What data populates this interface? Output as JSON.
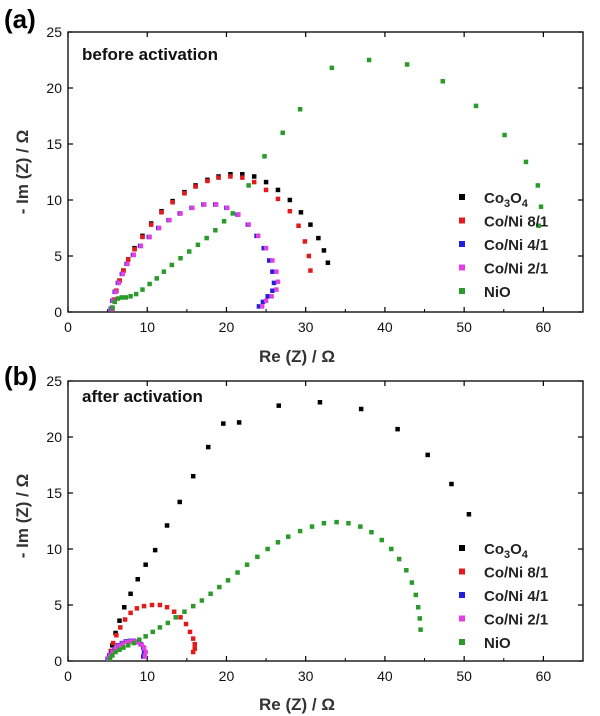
{
  "chart_data": [
    {
      "type": "scatter",
      "panel_label": "(a)",
      "annotation": "before activation",
      "xlabel": "Re (Z) / Ω",
      "ylabel": "- Im (Z) / Ω",
      "xlim": [
        0,
        65
      ],
      "ylim": [
        0,
        25
      ],
      "xticks": [
        0,
        10,
        20,
        30,
        40,
        50,
        60
      ],
      "yticks": [
        0,
        5,
        10,
        15,
        20,
        25
      ],
      "grid": false,
      "legend_position": "right",
      "series": [
        {
          "name": "Co3O4",
          "name_main": "Co",
          "name_sub1": "3",
          "name_mid": "O",
          "name_sub2": "4",
          "color": "#000000",
          "x": [
            5.6,
            5.8,
            6.1,
            6.5,
            7.0,
            7.6,
            8.4,
            9.4,
            10.5,
            11.8,
            13.2,
            14.7,
            16.1,
            17.6,
            19.0,
            20.5,
            22.0,
            23.5,
            25.0,
            26.5,
            28.0,
            29.4,
            30.6,
            31.6,
            32.3,
            32.8
          ],
          "y": [
            0.3,
            1.1,
            1.9,
            2.8,
            3.7,
            4.7,
            5.7,
            6.8,
            7.9,
            9.0,
            9.9,
            10.7,
            11.3,
            11.8,
            12.1,
            12.3,
            12.3,
            12.1,
            11.6,
            10.9,
            10.0,
            8.9,
            7.8,
            6.6,
            5.5,
            4.4
          ]
        },
        {
          "name": "Co/Ni 8/1",
          "color": "#e31a1c",
          "x": [
            5.6,
            5.8,
            6.1,
            6.5,
            7.0,
            7.6,
            8.4,
            9.4,
            10.5,
            11.8,
            13.2,
            14.7,
            16.1,
            17.6,
            19.0,
            20.5,
            22.0,
            23.5,
            25.0,
            26.5,
            28.0,
            29.1,
            29.9,
            30.4,
            30.6
          ],
          "y": [
            0.3,
            1.1,
            1.9,
            2.8,
            3.7,
            4.7,
            5.6,
            6.7,
            7.8,
            8.9,
            9.8,
            10.6,
            11.2,
            11.7,
            12.0,
            12.1,
            12.0,
            11.6,
            10.9,
            10.1,
            9.0,
            7.7,
            6.3,
            5.0,
            3.7
          ]
        },
        {
          "name": "Co/Ni 4/1",
          "color": "#1f1fe0",
          "x": [
            5.4,
            5.6,
            5.9,
            6.3,
            6.8,
            7.4,
            8.2,
            9.1,
            10.2,
            11.4,
            12.7,
            14.1,
            15.6,
            17.1,
            18.6,
            20.0,
            21.4,
            22.7,
            23.8,
            24.7,
            25.4,
            25.8,
            26.0,
            25.8,
            25.2,
            24.6,
            24.1
          ],
          "y": [
            0.3,
            1.0,
            1.8,
            2.6,
            3.4,
            4.3,
            5.1,
            5.9,
            6.7,
            7.5,
            8.2,
            8.8,
            9.3,
            9.6,
            9.6,
            9.3,
            8.7,
            7.8,
            6.8,
            5.7,
            4.6,
            3.6,
            2.6,
            1.9,
            1.4,
            0.9,
            0.5
          ]
        },
        {
          "name": "Co/Ni 2/1",
          "color": "#e040e0",
          "x": [
            5.5,
            5.7,
            6.0,
            6.4,
            6.9,
            7.5,
            8.3,
            9.2,
            10.3,
            11.5,
            12.8,
            14.2,
            15.7,
            17.2,
            18.7,
            20.1,
            21.5,
            22.8,
            24.0,
            25.0,
            25.8,
            26.3,
            26.5,
            26.3,
            25.7,
            25.0,
            24.5
          ],
          "y": [
            0.3,
            1.0,
            1.8,
            2.6,
            3.4,
            4.3,
            5.1,
            5.9,
            6.7,
            7.5,
            8.2,
            8.8,
            9.3,
            9.6,
            9.6,
            9.3,
            8.7,
            7.8,
            6.8,
            5.7,
            4.6,
            3.6,
            2.7,
            2.0,
            1.4,
            1.0,
            0.5
          ]
        },
        {
          "name": "NiO",
          "color": "#2a9a2a",
          "x": [
            5.6,
            5.9,
            6.3,
            6.8,
            7.3,
            7.9,
            8.6,
            9.4,
            10.3,
            11.2,
            12.1,
            13.1,
            14.2,
            15.3,
            16.4,
            17.5,
            18.6,
            19.7,
            20.8,
            22.8,
            24.8,
            27.1,
            29.3,
            33.3,
            38.0,
            42.8,
            47.3,
            51.5,
            55.1,
            57.8,
            59.3,
            59.7,
            59.4
          ],
          "y": [
            0.4,
            0.9,
            1.2,
            1.3,
            1.3,
            1.4,
            1.6,
            2.0,
            2.5,
            3.0,
            3.6,
            4.2,
            4.8,
            5.4,
            6.0,
            6.6,
            7.3,
            8.1,
            8.8,
            11.3,
            13.9,
            16.0,
            18.1,
            21.8,
            22.5,
            22.1,
            20.6,
            18.4,
            15.8,
            13.4,
            11.3,
            9.4,
            7.7
          ]
        }
      ]
    },
    {
      "type": "scatter",
      "panel_label": "(b)",
      "annotation": "after activation",
      "xlabel": "Re (Z) / Ω",
      "ylabel": "- Im (Z) / Ω",
      "xlim": [
        0,
        65
      ],
      "ylim": [
        0,
        25
      ],
      "xticks": [
        0,
        10,
        20,
        30,
        40,
        50,
        60
      ],
      "yticks": [
        0,
        5,
        10,
        15,
        20,
        25
      ],
      "grid": false,
      "legend_position": "right",
      "series": [
        {
          "name": "Co3O4",
          "name_main": "Co",
          "name_sub1": "3",
          "name_mid": "O",
          "name_sub2": "4",
          "color": "#000000",
          "x": [
            5.3,
            5.6,
            6.0,
            6.5,
            7.1,
            7.9,
            8.8,
            9.8,
            11.0,
            12.5,
            14.1,
            15.8,
            17.7,
            19.6,
            21.6,
            26.6,
            31.8,
            37.0,
            41.6,
            45.4,
            48.4,
            50.6
          ],
          "y": [
            0.4,
            1.4,
            2.5,
            3.6,
            4.8,
            6.0,
            7.3,
            8.6,
            9.9,
            12.1,
            14.2,
            16.5,
            19.1,
            21.2,
            21.3,
            22.8,
            23.1,
            22.5,
            20.7,
            18.4,
            15.8,
            13.1
          ]
        },
        {
          "name": "Co/Ni 8/1",
          "color": "#e31a1c",
          "x": [
            5.2,
            5.4,
            5.7,
            6.1,
            6.6,
            7.2,
            7.9,
            8.7,
            9.6,
            10.6,
            11.6,
            12.5,
            13.4,
            14.2,
            14.9,
            15.4,
            15.8,
            16.0,
            16.0,
            15.8
          ],
          "y": [
            0.3,
            0.9,
            1.6,
            2.3,
            3.0,
            3.7,
            4.3,
            4.7,
            4.9,
            5.0,
            5.0,
            4.8,
            4.4,
            3.9,
            3.3,
            2.6,
            2.0,
            1.5,
            1.1,
            0.8
          ]
        },
        {
          "name": "Co/Ni 4/1",
          "color": "#1f1fe0",
          "x": [
            5.0,
            5.2,
            5.5,
            5.9,
            6.3,
            6.8,
            7.3,
            7.8,
            8.3,
            8.8,
            9.2,
            9.5,
            9.6,
            9.5
          ],
          "y": [
            0.2,
            0.5,
            0.8,
            1.1,
            1.4,
            1.6,
            1.75,
            1.8,
            1.8,
            1.7,
            1.5,
            1.2,
            0.8,
            0.4
          ]
        },
        {
          "name": "Co/Ni 2/1",
          "color": "#e040e0",
          "x": [
            5.1,
            5.3,
            5.6,
            6.0,
            6.4,
            6.9,
            7.4,
            7.9,
            8.4,
            8.9,
            9.3,
            9.6,
            9.8,
            9.7
          ],
          "y": [
            0.2,
            0.5,
            0.8,
            1.1,
            1.35,
            1.55,
            1.7,
            1.75,
            1.75,
            1.65,
            1.45,
            1.15,
            0.8,
            0.4
          ]
        },
        {
          "name": "NiO",
          "color": "#2a9a2a",
          "x": [
            5.3,
            5.6,
            6.0,
            6.5,
            7.0,
            7.6,
            8.3,
            9.0,
            9.8,
            10.7,
            11.6,
            12.6,
            13.6,
            14.7,
            15.8,
            16.9,
            18.0,
            19.1,
            20.2,
            21.4,
            22.6,
            23.9,
            25.2,
            26.5,
            27.8,
            29.3,
            30.8,
            32.3,
            33.9,
            35.4,
            36.9,
            38.3,
            39.6,
            40.8,
            41.8,
            42.7,
            43.4,
            43.9,
            44.2,
            44.4,
            44.5
          ],
          "y": [
            0.2,
            0.5,
            0.8,
            1.0,
            1.2,
            1.4,
            1.6,
            1.9,
            2.2,
            2.6,
            3.0,
            3.4,
            3.9,
            4.4,
            4.9,
            5.4,
            6.0,
            6.6,
            7.2,
            7.9,
            8.6,
            9.3,
            10.0,
            10.6,
            11.1,
            11.6,
            12.0,
            12.3,
            12.4,
            12.3,
            12.0,
            11.5,
            10.8,
            10.0,
            9.1,
            8.1,
            7.0,
            5.9,
            4.8,
            3.8,
            2.8
          ]
        }
      ]
    }
  ]
}
